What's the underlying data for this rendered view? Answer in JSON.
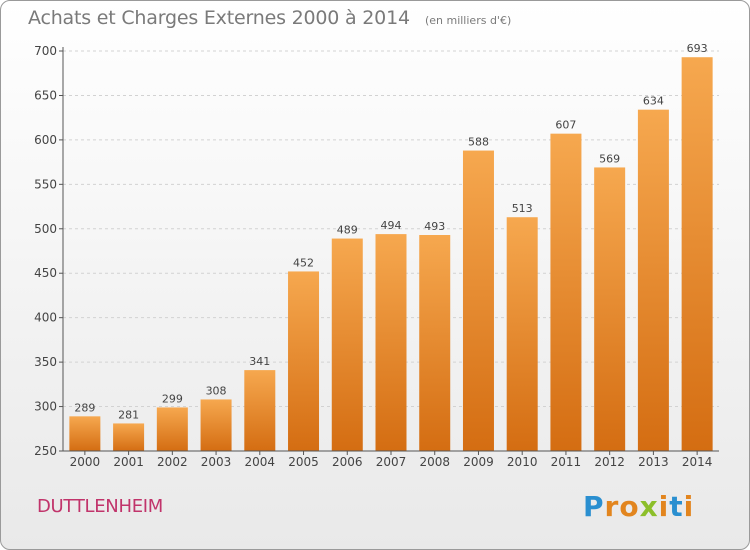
{
  "title": "Achats et Charges Externes 2000 à 2014",
  "subtitle": "(en milliers d'€)",
  "commune": "DUTTLENHEIM",
  "brand": {
    "letters": [
      "P",
      "r",
      "o",
      "x",
      "i",
      "t",
      "i"
    ],
    "colors": [
      "#2a8fd0",
      "#e2851e",
      "#e2851e",
      "#8cbf2a",
      "#e2851e",
      "#2a8fd0",
      "#e2851e"
    ]
  },
  "colors": {
    "bar_light": "#f6a84f",
    "bar_dark": "#d46d12",
    "axis": "#555555"
  },
  "chart_data": {
    "type": "bar",
    "categories": [
      "2000",
      "2001",
      "2002",
      "2003",
      "2004",
      "2005",
      "2006",
      "2007",
      "2008",
      "2009",
      "2010",
      "2011",
      "2012",
      "2013",
      "2014"
    ],
    "values": [
      289,
      281,
      299,
      308,
      341,
      452,
      489,
      494,
      493,
      588,
      513,
      607,
      569,
      634,
      693
    ],
    "ylim": [
      250,
      700
    ],
    "yticks": [
      250,
      300,
      350,
      400,
      450,
      500,
      550,
      600,
      650,
      700
    ],
    "grid": true,
    "data_labels": true
  }
}
